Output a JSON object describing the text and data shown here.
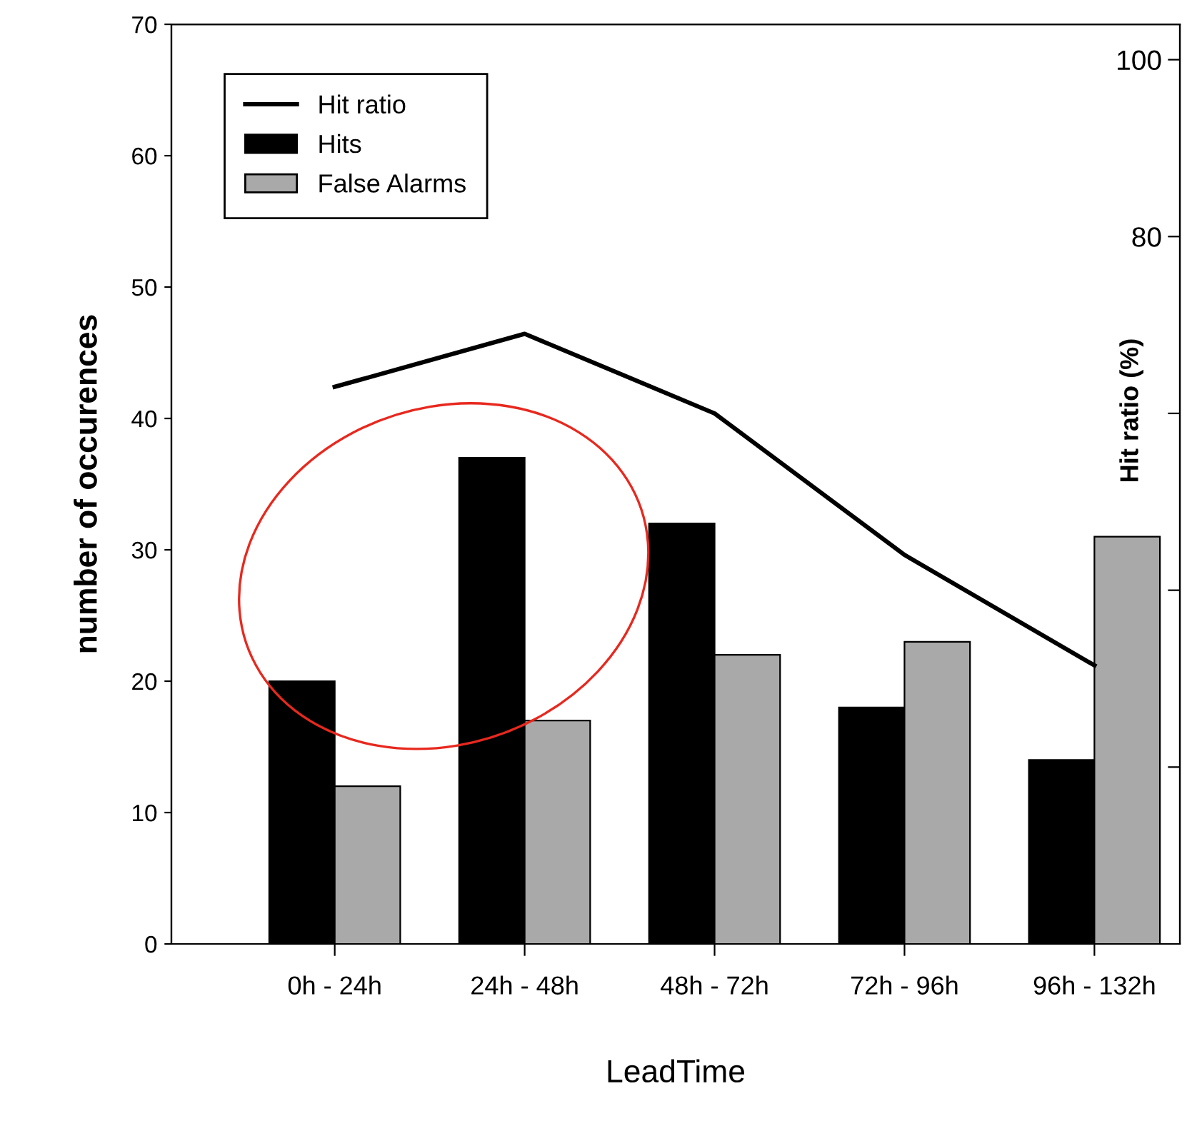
{
  "chart_data": {
    "type": "bar",
    "xlabel": "LeadTime",
    "ylabel": "number of occurences",
    "y2label": "Hit ratio (%)",
    "categories": [
      "0h - 24h",
      "24h - 48h",
      "48h - 72h",
      "72h - 96h",
      "96h - 132h"
    ],
    "series": [
      {
        "name": "Hit ratio",
        "type": "line",
        "axis": "y2",
        "color": "#000000",
        "values": [
          63,
          69,
          60,
          44,
          31.5
        ]
      },
      {
        "name": "Hits",
        "color": "#000000",
        "values": [
          20,
          37,
          32,
          18,
          14
        ]
      },
      {
        "name": "False Alarms",
        "color": "#a9a9a9",
        "values": [
          12,
          17,
          22,
          23,
          31
        ]
      }
    ],
    "ylim": [
      0,
      70
    ],
    "yticks": [
      0,
      10,
      20,
      30,
      40,
      50,
      60,
      70
    ],
    "y2lim": [
      0,
      104
    ],
    "y2ticks": [
      {
        "value": 20,
        "label": null
      },
      {
        "value": 40,
        "label": null
      },
      {
        "value": 60,
        "label": null
      },
      80,
      100
    ],
    "grid": false,
    "legend": "top left",
    "marker": "none",
    "line_style": "solid"
  }
}
